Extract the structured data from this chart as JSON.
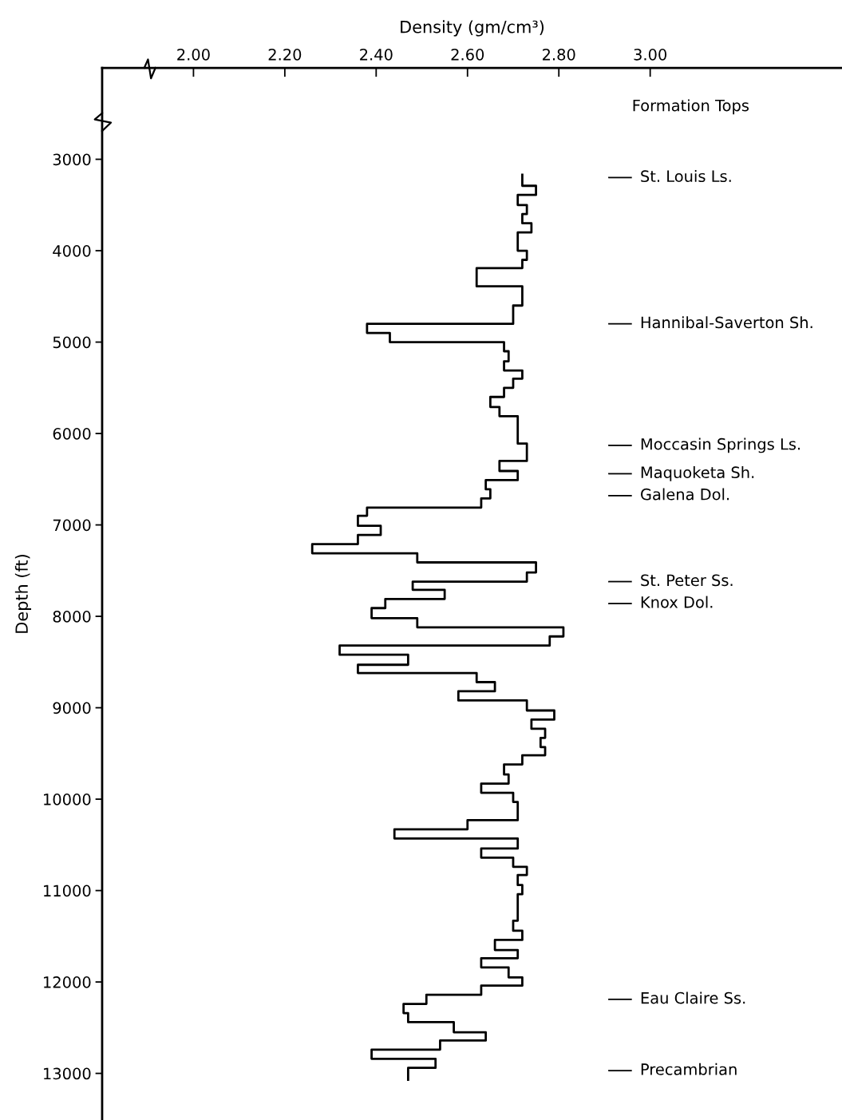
{
  "chart_data": {
    "type": "line",
    "xlabel": "Density (gm/cm³)",
    "ylabel": "Depth (ft)",
    "xlim": [
      1.8,
      3.42
    ],
    "ylim": [
      13510,
      2000
    ],
    "xticks": [
      {
        "value": 2.0,
        "label": "2.00"
      },
      {
        "value": 2.2,
        "label": "2.20"
      },
      {
        "value": 2.4,
        "label": "2.40"
      },
      {
        "value": 2.6,
        "label": "2.60"
      },
      {
        "value": 2.8,
        "label": "2.80"
      },
      {
        "value": 3.0,
        "label": "3.00"
      }
    ],
    "yticks": [
      3000,
      4000,
      5000,
      6000,
      7000,
      8000,
      9000,
      10000,
      11000,
      12000,
      13000
    ],
    "grid": false,
    "series": [
      {
        "color": "#000000",
        "x": [
          2.72,
          2.72,
          2.75,
          2.75,
          2.71,
          2.71,
          2.73,
          2.73,
          2.72,
          2.72,
          2.74,
          2.74,
          2.71,
          2.71,
          2.73,
          2.73,
          2.72,
          2.72,
          2.62,
          2.62,
          2.72,
          2.72,
          2.7,
          2.7,
          2.38,
          2.38,
          2.43,
          2.43,
          2.68,
          2.68,
          2.69,
          2.69,
          2.68,
          2.68,
          2.72,
          2.72,
          2.7,
          2.7,
          2.68,
          2.68,
          2.65,
          2.65,
          2.67,
          2.67,
          2.71,
          2.71,
          2.73,
          2.73,
          2.67,
          2.67,
          2.71,
          2.71,
          2.64,
          2.64,
          2.65,
          2.65,
          2.63,
          2.63,
          2.38,
          2.38,
          2.36,
          2.36,
          2.41,
          2.41,
          2.36,
          2.36,
          2.26,
          2.26,
          2.49,
          2.49,
          2.75,
          2.75,
          2.73,
          2.73,
          2.48,
          2.48,
          2.55,
          2.55,
          2.42,
          2.42,
          2.39,
          2.39,
          2.49,
          2.49,
          2.81,
          2.81,
          2.78,
          2.78,
          2.32,
          2.32,
          2.47,
          2.47,
          2.36,
          2.36,
          2.62,
          2.62,
          2.66,
          2.66,
          2.58,
          2.58,
          2.73,
          2.73,
          2.79,
          2.79,
          2.74,
          2.74,
          2.77,
          2.77,
          2.76,
          2.76,
          2.77,
          2.77,
          2.72,
          2.72,
          2.68,
          2.68,
          2.69,
          2.69,
          2.63,
          2.63,
          2.7,
          2.7,
          2.71,
          2.71,
          2.6,
          2.6,
          2.44,
          2.44,
          2.71,
          2.71,
          2.63,
          2.63,
          2.7,
          2.7,
          2.73,
          2.73,
          2.71,
          2.71,
          2.72,
          2.72,
          2.71,
          2.71,
          2.7,
          2.7,
          2.72,
          2.72,
          2.66,
          2.66,
          2.71,
          2.71,
          2.63,
          2.63,
          2.69,
          2.69,
          2.72,
          2.72,
          2.63,
          2.63,
          2.51,
          2.51,
          2.46,
          2.46,
          2.47,
          2.47,
          2.57,
          2.57,
          2.64,
          2.64,
          2.54,
          2.54,
          2.39,
          2.39,
          2.53,
          2.53,
          2.47,
          2.47
        ],
        "values": [
          3170,
          3290,
          3290,
          3390,
          3390,
          3500,
          3500,
          3600,
          3600,
          3700,
          3700,
          3800,
          3800,
          4000,
          4000,
          4100,
          4100,
          4190,
          4190,
          4390,
          4390,
          4600,
          4600,
          4800,
          4800,
          4900,
          4900,
          5000,
          5000,
          5100,
          5100,
          5210,
          5210,
          5310,
          5310,
          5400,
          5400,
          5500,
          5500,
          5600,
          5600,
          5710,
          5710,
          5810,
          5810,
          6110,
          6110,
          6300,
          6300,
          6410,
          6410,
          6510,
          6510,
          6610,
          6610,
          6710,
          6710,
          6810,
          6810,
          6900,
          6900,
          7010,
          7010,
          7110,
          7110,
          7210,
          7210,
          7310,
          7310,
          7410,
          7410,
          7520,
          7520,
          7620,
          7620,
          7710,
          7710,
          7810,
          7810,
          7910,
          7910,
          8020,
          8020,
          8120,
          8120,
          8220,
          8220,
          8320,
          8320,
          8420,
          8420,
          8530,
          8530,
          8620,
          8620,
          8720,
          8720,
          8820,
          8820,
          8920,
          8920,
          9030,
          9030,
          9130,
          9130,
          9230,
          9230,
          9330,
          9330,
          9430,
          9430,
          9520,
          9520,
          9620,
          9620,
          9730,
          9730,
          9830,
          9830,
          9930,
          9930,
          10030,
          10030,
          10230,
          10230,
          10330,
          10330,
          10430,
          10430,
          10540,
          10540,
          10640,
          10640,
          10740,
          10740,
          10830,
          10830,
          10940,
          10940,
          11040,
          11040,
          11330,
          11330,
          11440,
          11440,
          11540,
          11540,
          11650,
          11650,
          11740,
          11740,
          11840,
          11840,
          11950,
          11950,
          12040,
          12040,
          12140,
          12140,
          12240,
          12240,
          12340,
          12340,
          12440,
          12440,
          12550,
          12550,
          12640,
          12640,
          12740,
          12740,
          12840,
          12840,
          12940,
          12940,
          13070
        ]
      }
    ],
    "annotations": [
      "Formation Tops"
    ],
    "ref_lines": [
      {
        "axis": "y",
        "value": 3200,
        "label": "St. Louis Ls."
      },
      {
        "axis": "y",
        "value": 4800,
        "label": "Hannibal-Saverton Sh."
      },
      {
        "axis": "y",
        "value": 6130,
        "label": "Moccasin Springs Ls."
      },
      {
        "axis": "y",
        "value": 6440,
        "label": "Maquoketa Sh."
      },
      {
        "axis": "y",
        "value": 6680,
        "label": "Galena Dol."
      },
      {
        "axis": "y",
        "value": 7620,
        "label": "St. Peter Ss."
      },
      {
        "axis": "y",
        "value": 7860,
        "label": "Knox Dol."
      },
      {
        "axis": "y",
        "value": 12190,
        "label": "Eau Claire Ss."
      },
      {
        "axis": "y",
        "value": 12970,
        "label": "Precambrian"
      }
    ]
  }
}
